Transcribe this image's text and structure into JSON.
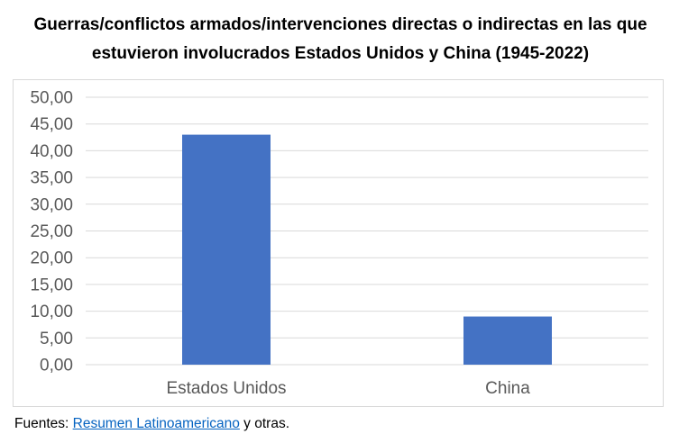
{
  "chart_data": {
    "type": "bar",
    "title": "Guerras/conflictos armados/intervenciones directas o indirectas en las que estuvieron involucrados Estados Unidos y China (1945-2022)",
    "categories": [
      "Estados Unidos",
      "China"
    ],
    "values": [
      43,
      9
    ],
    "ylim": [
      0,
      50
    ],
    "yticks": [
      "0,00",
      "5,00",
      "10,00",
      "15,00",
      "20,00",
      "25,00",
      "30,00",
      "35,00",
      "40,00",
      "45,00",
      "50,00"
    ],
    "xlabel": "",
    "ylabel": "",
    "grid": true,
    "legend": "none",
    "bar_color": "#4472c4",
    "grid_color": "#d9d9d9"
  },
  "source": {
    "prefix": "Fuentes: ",
    "link_text": "Resumen Latinoamericano",
    "suffix": " y otras."
  }
}
